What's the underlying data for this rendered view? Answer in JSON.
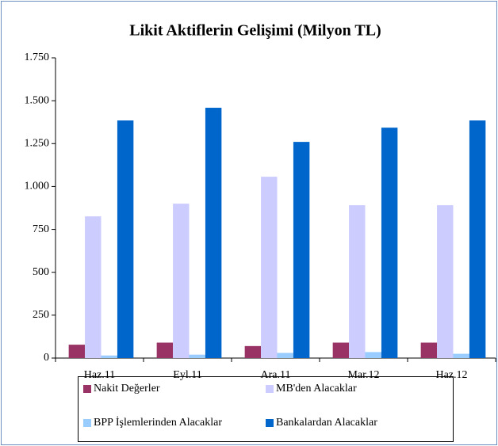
{
  "chart_data": {
    "type": "bar",
    "title": "Likit Aktiflerin Gelişimi (Milyon TL)",
    "categories": [
      "Haz.11",
      "Eyl.11",
      "Ara.11",
      "Mar.12",
      "Haz.12"
    ],
    "series": [
      {
        "name": "Nakit Değerler",
        "color": "#993366",
        "values": [
          78,
          90,
          70,
          90,
          90
        ]
      },
      {
        "name": "MB'den Alacaklar",
        "color": "#ccccff",
        "values": [
          826,
          900,
          1057,
          891,
          891
        ]
      },
      {
        "name": "BPP İşlemlerinden Alacaklar",
        "color": "#99ccff",
        "values": [
          15,
          20,
          30,
          35,
          25
        ]
      },
      {
        "name": "Bankalardan Alacaklar",
        "color": "#0066cc",
        "values": [
          1385,
          1459,
          1260,
          1343,
          1385
        ]
      }
    ],
    "ylim": [
      0,
      1750
    ],
    "yticks": [
      0,
      250,
      500,
      750,
      {
        "value": 1000,
        "label": "1.000"
      },
      {
        "value": 1250,
        "label": "1.250"
      },
      {
        "value": 1500,
        "label": "1.500"
      },
      {
        "value": 1750,
        "label": "1.750"
      }
    ],
    "grid": false
  }
}
